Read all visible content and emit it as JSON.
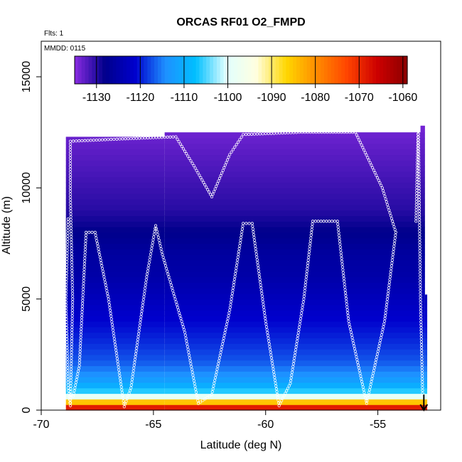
{
  "chart_data": {
    "type": "heatmap",
    "title": "ORCAS RF01 O2_FMPD",
    "annotations": {
      "flights": "Flts: 1",
      "date": "MMDD: 0115"
    },
    "xlabel": "Latitude (deg N)",
    "ylabel": "Altitude (m)",
    "xlim": [
      -70,
      -52.2
    ],
    "ylim": [
      0,
      16600
    ],
    "xticks": [
      -70,
      -65,
      -60,
      -55
    ],
    "xtick_labels": [
      "-70",
      "-65",
      "-60",
      "-55"
    ],
    "yticks": [
      0,
      5000,
      10000,
      15000
    ],
    "ytick_labels": [
      "0",
      "5000",
      "10000",
      "15000"
    ],
    "colorbar": {
      "ticks": [
        -1130,
        -1120,
        -1110,
        -1100,
        -1090,
        -1080,
        -1070,
        -1060
      ],
      "tick_labels": [
        "-1130",
        "-1120",
        "-1110",
        "-1100",
        "-1090",
        "-1080",
        "-1070",
        "-1060"
      ],
      "range": [
        -1135,
        -1059
      ],
      "colors": [
        "#8a2be2",
        "#00008b",
        "#0000cd",
        "#1e90ff",
        "#00bfff",
        "#e0ffff",
        "#ffffe0",
        "#ffd700",
        "#ff8c00",
        "#ff4500",
        "#cd0000",
        "#8b0000"
      ]
    },
    "profile_columns": [
      {
        "x_start": -68.9,
        "x_end": -64.5,
        "top": 12300
      },
      {
        "x_start": -64.5,
        "x_end": -53.1,
        "top": 12500
      },
      {
        "x_start": -53.1,
        "x_end": -52.9,
        "top": 12800
      },
      {
        "x_start": -52.9,
        "x_end": -52.8,
        "top": 5200
      }
    ],
    "vertical_profile": [
      {
        "alt": 0,
        "value": -1063
      },
      {
        "alt": 150,
        "value": -1070
      },
      {
        "alt": 300,
        "value": -1080
      },
      {
        "alt": 450,
        "value": -1090
      },
      {
        "alt": 650,
        "value": -1100
      },
      {
        "alt": 900,
        "value": -1107
      },
      {
        "alt": 1200,
        "value": -1111
      },
      {
        "alt": 1600,
        "value": -1114
      },
      {
        "alt": 2200,
        "value": -1117
      },
      {
        "alt": 3000,
        "value": -1119
      },
      {
        "alt": 4000,
        "value": -1121
      },
      {
        "alt": 5000,
        "value": -1123
      },
      {
        "alt": 6000,
        "value": -1125
      },
      {
        "alt": 7000,
        "value": -1126
      },
      {
        "alt": 8000,
        "value": -1128
      },
      {
        "alt": 9000,
        "value": -1130
      },
      {
        "alt": 10000,
        "value": -1131
      },
      {
        "alt": 11000,
        "value": -1132
      },
      {
        "alt": 12000,
        "value": -1133
      },
      {
        "alt": 12800,
        "value": -1134
      }
    ],
    "flight_track": [
      {
        "lat": -68.8,
        "alt": 8600
      },
      {
        "lat": -68.9,
        "alt": 5000
      },
      {
        "lat": -68.8,
        "alt": 1000
      },
      {
        "lat": -68.7,
        "alt": 200
      },
      {
        "lat": -68.6,
        "alt": 5000
      },
      {
        "lat": -68.7,
        "alt": 9600
      },
      {
        "lat": -68.7,
        "alt": 12100
      },
      {
        "lat": -66.5,
        "alt": 12200
      },
      {
        "lat": -64.0,
        "alt": 12300
      },
      {
        "lat": -63.2,
        "alt": 11000
      },
      {
        "lat": -62.4,
        "alt": 9600
      },
      {
        "lat": -61.6,
        "alt": 11500
      },
      {
        "lat": -61.0,
        "alt": 12400
      },
      {
        "lat": -58.5,
        "alt": 12500
      },
      {
        "lat": -56.0,
        "alt": 12500
      },
      {
        "lat": -54.8,
        "alt": 10000
      },
      {
        "lat": -54.2,
        "alt": 8000
      },
      {
        "lat": -54.7,
        "alt": 4000
      },
      {
        "lat": -55.5,
        "alt": 300
      },
      {
        "lat": -56.3,
        "alt": 4000
      },
      {
        "lat": -56.8,
        "alt": 8500
      },
      {
        "lat": -57.9,
        "alt": 8500
      },
      {
        "lat": -58.3,
        "alt": 5000
      },
      {
        "lat": -58.9,
        "alt": 1200
      },
      {
        "lat": -59.4,
        "alt": 200
      },
      {
        "lat": -60.0,
        "alt": 4000
      },
      {
        "lat": -60.6,
        "alt": 8400
      },
      {
        "lat": -61.0,
        "alt": 8400
      },
      {
        "lat": -61.6,
        "alt": 4500
      },
      {
        "lat": -62.4,
        "alt": 700
      },
      {
        "lat": -63.0,
        "alt": 300
      },
      {
        "lat": -63.6,
        "alt": 3500
      },
      {
        "lat": -64.6,
        "alt": 7000
      },
      {
        "lat": -64.9,
        "alt": 8300
      },
      {
        "lat": -65.3,
        "alt": 6000
      },
      {
        "lat": -66.0,
        "alt": 1000
      },
      {
        "lat": -66.3,
        "alt": 150
      },
      {
        "lat": -67.0,
        "alt": 5000
      },
      {
        "lat": -67.6,
        "alt": 8000
      },
      {
        "lat": -68.0,
        "alt": 8000
      },
      {
        "lat": -68.3,
        "alt": 2000
      },
      {
        "lat": -68.6,
        "alt": 500
      }
    ],
    "track_tail": [
      {
        "lat": -53.3,
        "alt": 8500
      },
      {
        "lat": -53.2,
        "alt": 12800
      },
      {
        "lat": -53.1,
        "alt": 5000
      },
      {
        "lat": -53.0,
        "alt": 500
      }
    ],
    "arrow_marker": {
      "lat": -52.95,
      "alt_from": 700,
      "alt_to": 0
    }
  }
}
